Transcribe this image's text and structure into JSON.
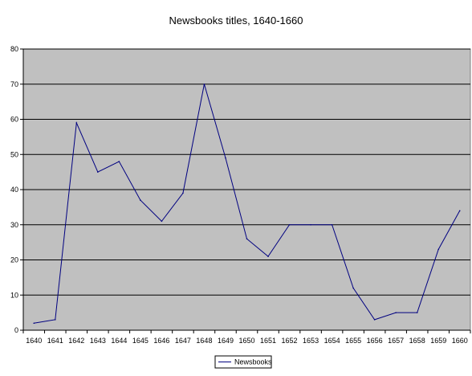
{
  "chart_data": {
    "type": "line",
    "title": "Newsbooks titles, 1640-1660",
    "xlabel": "",
    "ylabel": "",
    "categories": [
      "1640",
      "1641",
      "1642",
      "1643",
      "1644",
      "1645",
      "1646",
      "1647",
      "1648",
      "1649",
      "1650",
      "1651",
      "1652",
      "1653",
      "1654",
      "1655",
      "1656",
      "1657",
      "1658",
      "1659",
      "1660"
    ],
    "series": [
      {
        "name": "Newsbooks",
        "values": [
          2,
          3,
          59,
          45,
          48,
          37,
          31,
          39,
          70,
          49,
          26,
          21,
          30,
          30,
          30,
          12,
          3,
          5,
          5,
          23,
          34
        ]
      }
    ],
    "ylim": [
      0,
      80
    ],
    "yticks": [
      0,
      10,
      20,
      30,
      40,
      50,
      60,
      70,
      80
    ],
    "grid": true,
    "legend": "bottom-center",
    "colors": {
      "plot_bg": "#c0c0c0",
      "line": "#000080",
      "grid": "#000000"
    }
  }
}
